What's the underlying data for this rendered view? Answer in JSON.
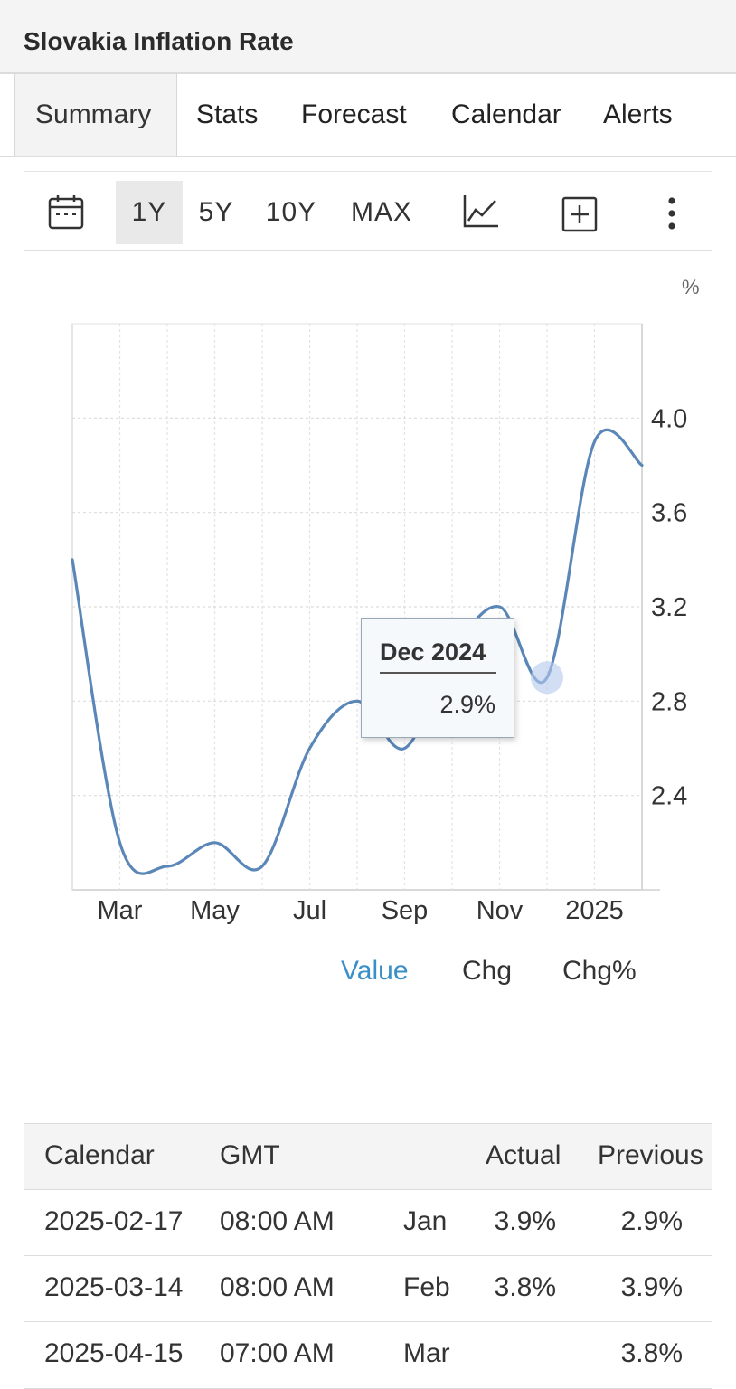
{
  "header": {
    "title": "Slovakia Inflation Rate"
  },
  "tabs": [
    "Summary",
    "Stats",
    "Forecast",
    "Calendar",
    "Alerts"
  ],
  "toolbar": {
    "ranges": [
      "1Y",
      "5Y",
      "10Y",
      "MAX"
    ],
    "active_range": "1Y",
    "icons": [
      "calendar-icon",
      "line-chart-icon",
      "add-icon",
      "more-vertical-icon"
    ]
  },
  "chart_data": {
    "type": "line",
    "unit": "%",
    "x": [
      "Feb 2024",
      "Mar 2024",
      "Apr 2024",
      "May 2024",
      "Jun 2024",
      "Jul 2024",
      "Aug 2024",
      "Sep 2024",
      "Oct 2024",
      "Nov 2024",
      "Dec 2024",
      "Jan 2025",
      "Feb 2025"
    ],
    "values": [
      3.4,
      2.2,
      2.1,
      2.2,
      2.1,
      2.6,
      2.8,
      2.6,
      3.0,
      3.2,
      2.9,
      3.9,
      3.8
    ],
    "xticks": [
      "Mar",
      "May",
      "Jul",
      "Sep",
      "Nov",
      "2025"
    ],
    "yticks": [
      "2.4",
      "2.8",
      "3.2",
      "3.6",
      "4.0"
    ],
    "ylim": [
      2.0,
      4.4
    ],
    "grid": true,
    "line_color": "#5a87b8",
    "tooltip": {
      "title": "Dec 2024",
      "value": "2.9%"
    }
  },
  "legend": {
    "items": [
      "Value",
      "Chg",
      "Chg%"
    ],
    "active": "Value",
    "active_color": "#3a8fc7"
  },
  "calendar_table": {
    "headers": [
      "Calendar",
      "GMT",
      "",
      "Actual",
      "Previous"
    ],
    "rows": [
      [
        "2025-02-17",
        "08:00 AM",
        "Jan",
        "3.9%",
        "2.9%"
      ],
      [
        "2025-03-14",
        "08:00 AM",
        "Feb",
        "3.8%",
        "3.9%"
      ],
      [
        "2025-04-15",
        "07:00 AM",
        "Mar",
        "",
        "3.8%"
      ]
    ]
  }
}
